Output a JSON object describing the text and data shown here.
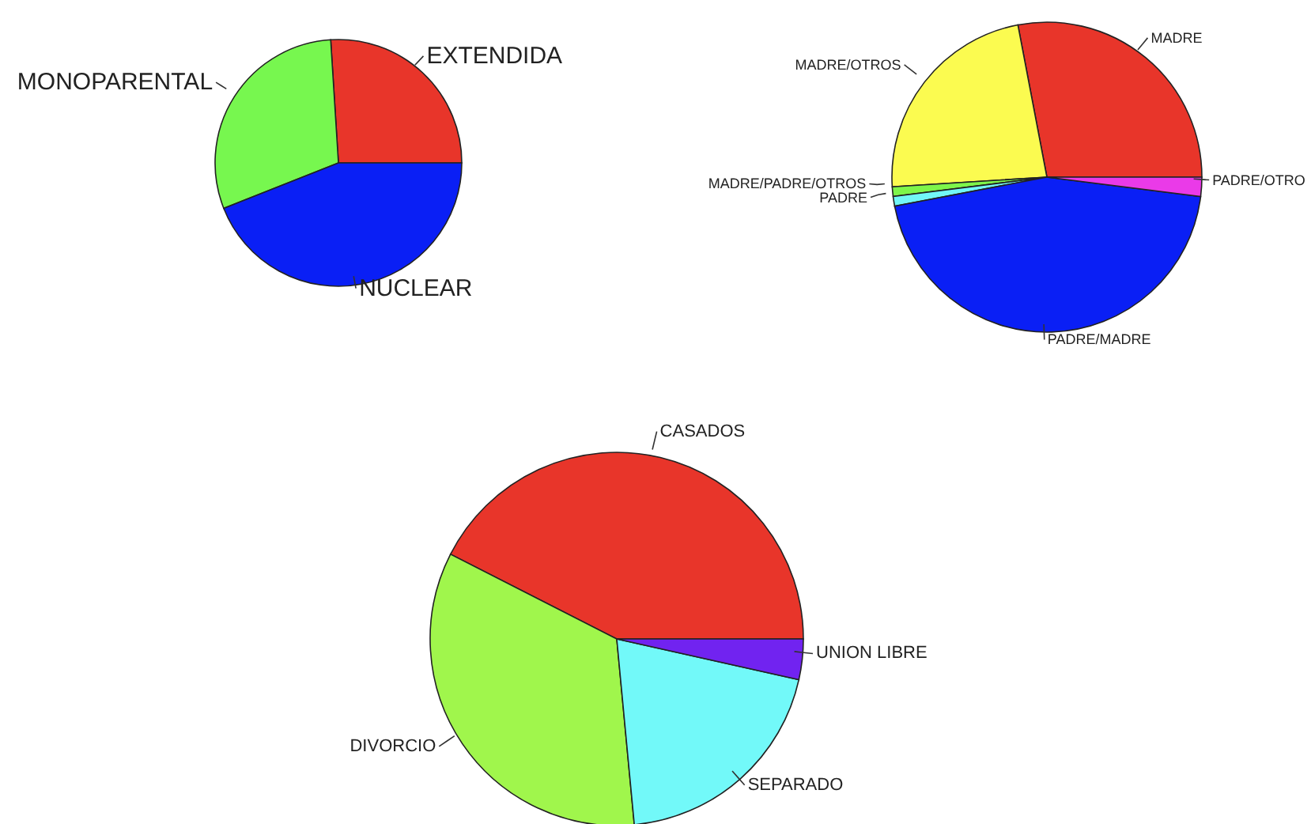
{
  "chart_data": [
    {
      "type": "pie",
      "categories": [
        "EXTENDIDA",
        "MONOPARENTAL",
        "NUCLEAR"
      ],
      "values": [
        26,
        30,
        44
      ],
      "colors": [
        "#e8352a",
        "#77f74f",
        "#0a1ff5"
      ]
    },
    {
      "type": "pie",
      "categories": [
        "MADRE",
        "MADRE/OTROS",
        "MADRE/PADRE/OTROS",
        "PADRE",
        "PADRE/MADRE",
        "PADRE/OTRO"
      ],
      "values": [
        28,
        23,
        1,
        1,
        45,
        2
      ],
      "colors": [
        "#e8352a",
        "#fbfb50",
        "#7ef54a",
        "#72f7f7",
        "#0a1ff5",
        "#ea3ae8"
      ]
    },
    {
      "type": "pie",
      "categories": [
        "CASADOS",
        "DIVORCIO",
        "SEPARADO",
        "UNION LIBRE"
      ],
      "values": [
        42.5,
        34,
        20,
        3.5
      ],
      "colors": [
        "#e8352a",
        "#a0f64c",
        "#72f9f9",
        "#7123f0"
      ]
    }
  ]
}
